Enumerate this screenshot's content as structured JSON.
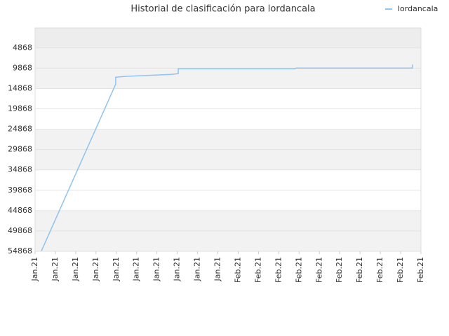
{
  "chart_data": {
    "type": "line",
    "title": "Historial de clasificación para lordancala",
    "series": [
      {
        "name": "lordancala",
        "color": "#8fc3f0",
        "x": [
          0.31,
          3.97,
          3.97,
          4.42,
          5.11,
          5.94,
          6.7,
          7.05,
          7.05,
          12.78,
          12.85,
          18.58,
          18.58
        ],
        "values": [
          54800,
          13800,
          12100,
          11900,
          11730,
          11560,
          11390,
          11220,
          10020,
          10020,
          9850,
          9850,
          8990
        ]
      }
    ],
    "ylim": [
      54868,
      0
    ],
    "yticks": [
      4868,
      9868,
      14868,
      19868,
      24868,
      29868,
      34868,
      39868,
      44868,
      49868,
      54868
    ],
    "xlim": [
      0,
      19
    ],
    "xticks": [
      {
        "value": 0,
        "label": "Jan.21"
      },
      {
        "value": 1,
        "label": "Jan.21"
      },
      {
        "value": 2,
        "label": "Jan.21"
      },
      {
        "value": 3,
        "label": "Jan.21"
      },
      {
        "value": 4,
        "label": "Jan.21"
      },
      {
        "value": 5,
        "label": "Jan.21"
      },
      {
        "value": 6,
        "label": "Jan.21"
      },
      {
        "value": 7,
        "label": "Jan.21"
      },
      {
        "value": 8,
        "label": "Jan.21"
      },
      {
        "value": 9,
        "label": "Jan.21"
      },
      {
        "value": 10,
        "label": "Feb.21"
      },
      {
        "value": 11,
        "label": "Feb.21"
      },
      {
        "value": 12,
        "label": "Feb.21"
      },
      {
        "value": 13,
        "label": "Feb.21"
      },
      {
        "value": 14,
        "label": "Feb.21"
      },
      {
        "value": 15,
        "label": "Feb.21"
      },
      {
        "value": 16,
        "label": "Feb.21"
      },
      {
        "value": 17,
        "label": "Feb.21"
      },
      {
        "value": 18,
        "label": "Feb.21"
      },
      {
        "value": 19,
        "label": "Feb.21"
      }
    ],
    "grid": true,
    "legend": "top-right"
  }
}
